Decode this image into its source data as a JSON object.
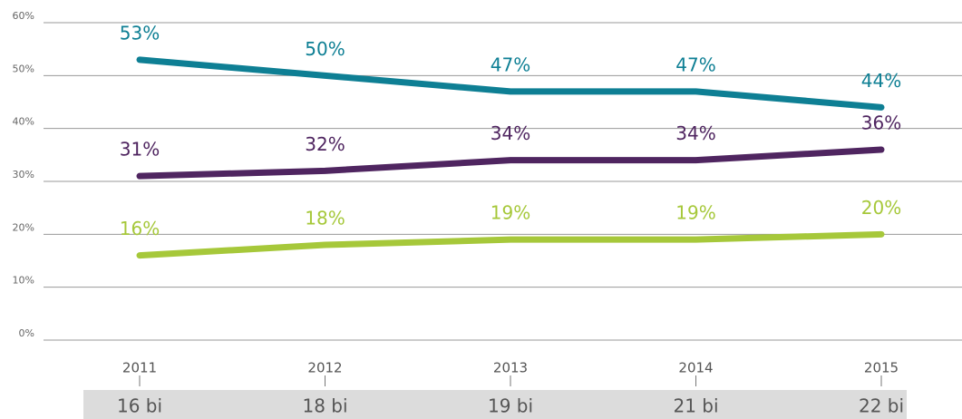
{
  "chart_data": {
    "type": "line",
    "categories": [
      "2011",
      "2012",
      "2013",
      "2014",
      "2015"
    ],
    "footer_labels": [
      "16 bi",
      "18 bi",
      "19 bi",
      "21 bi",
      "22 bi"
    ],
    "series": [
      {
        "color": "#0e7f94",
        "values": [
          53,
          50,
          47,
          47,
          44
        ],
        "value_labels": [
          "53%",
          "50%",
          "47%",
          "47%",
          "44%"
        ]
      },
      {
        "color": "#4f2560",
        "values": [
          31,
          32,
          34,
          34,
          36
        ],
        "value_labels": [
          "31%",
          "32%",
          "34%",
          "34%",
          "36%"
        ]
      },
      {
        "color": "#a6c83a",
        "values": [
          16,
          18,
          19,
          19,
          20
        ],
        "value_labels": [
          "16%",
          "18%",
          "19%",
          "19%",
          "20%"
        ]
      }
    ],
    "ylim": [
      0,
      60
    ],
    "yticks": [
      {
        "value": 0,
        "label": "0%"
      },
      {
        "value": 10,
        "label": "10%"
      },
      {
        "value": 20,
        "label": "20%"
      },
      {
        "value": 30,
        "label": "30%"
      },
      {
        "value": 40,
        "label": "40%"
      },
      {
        "value": 50,
        "label": "50%"
      },
      {
        "value": 60,
        "label": "60%"
      }
    ],
    "grid": true
  }
}
